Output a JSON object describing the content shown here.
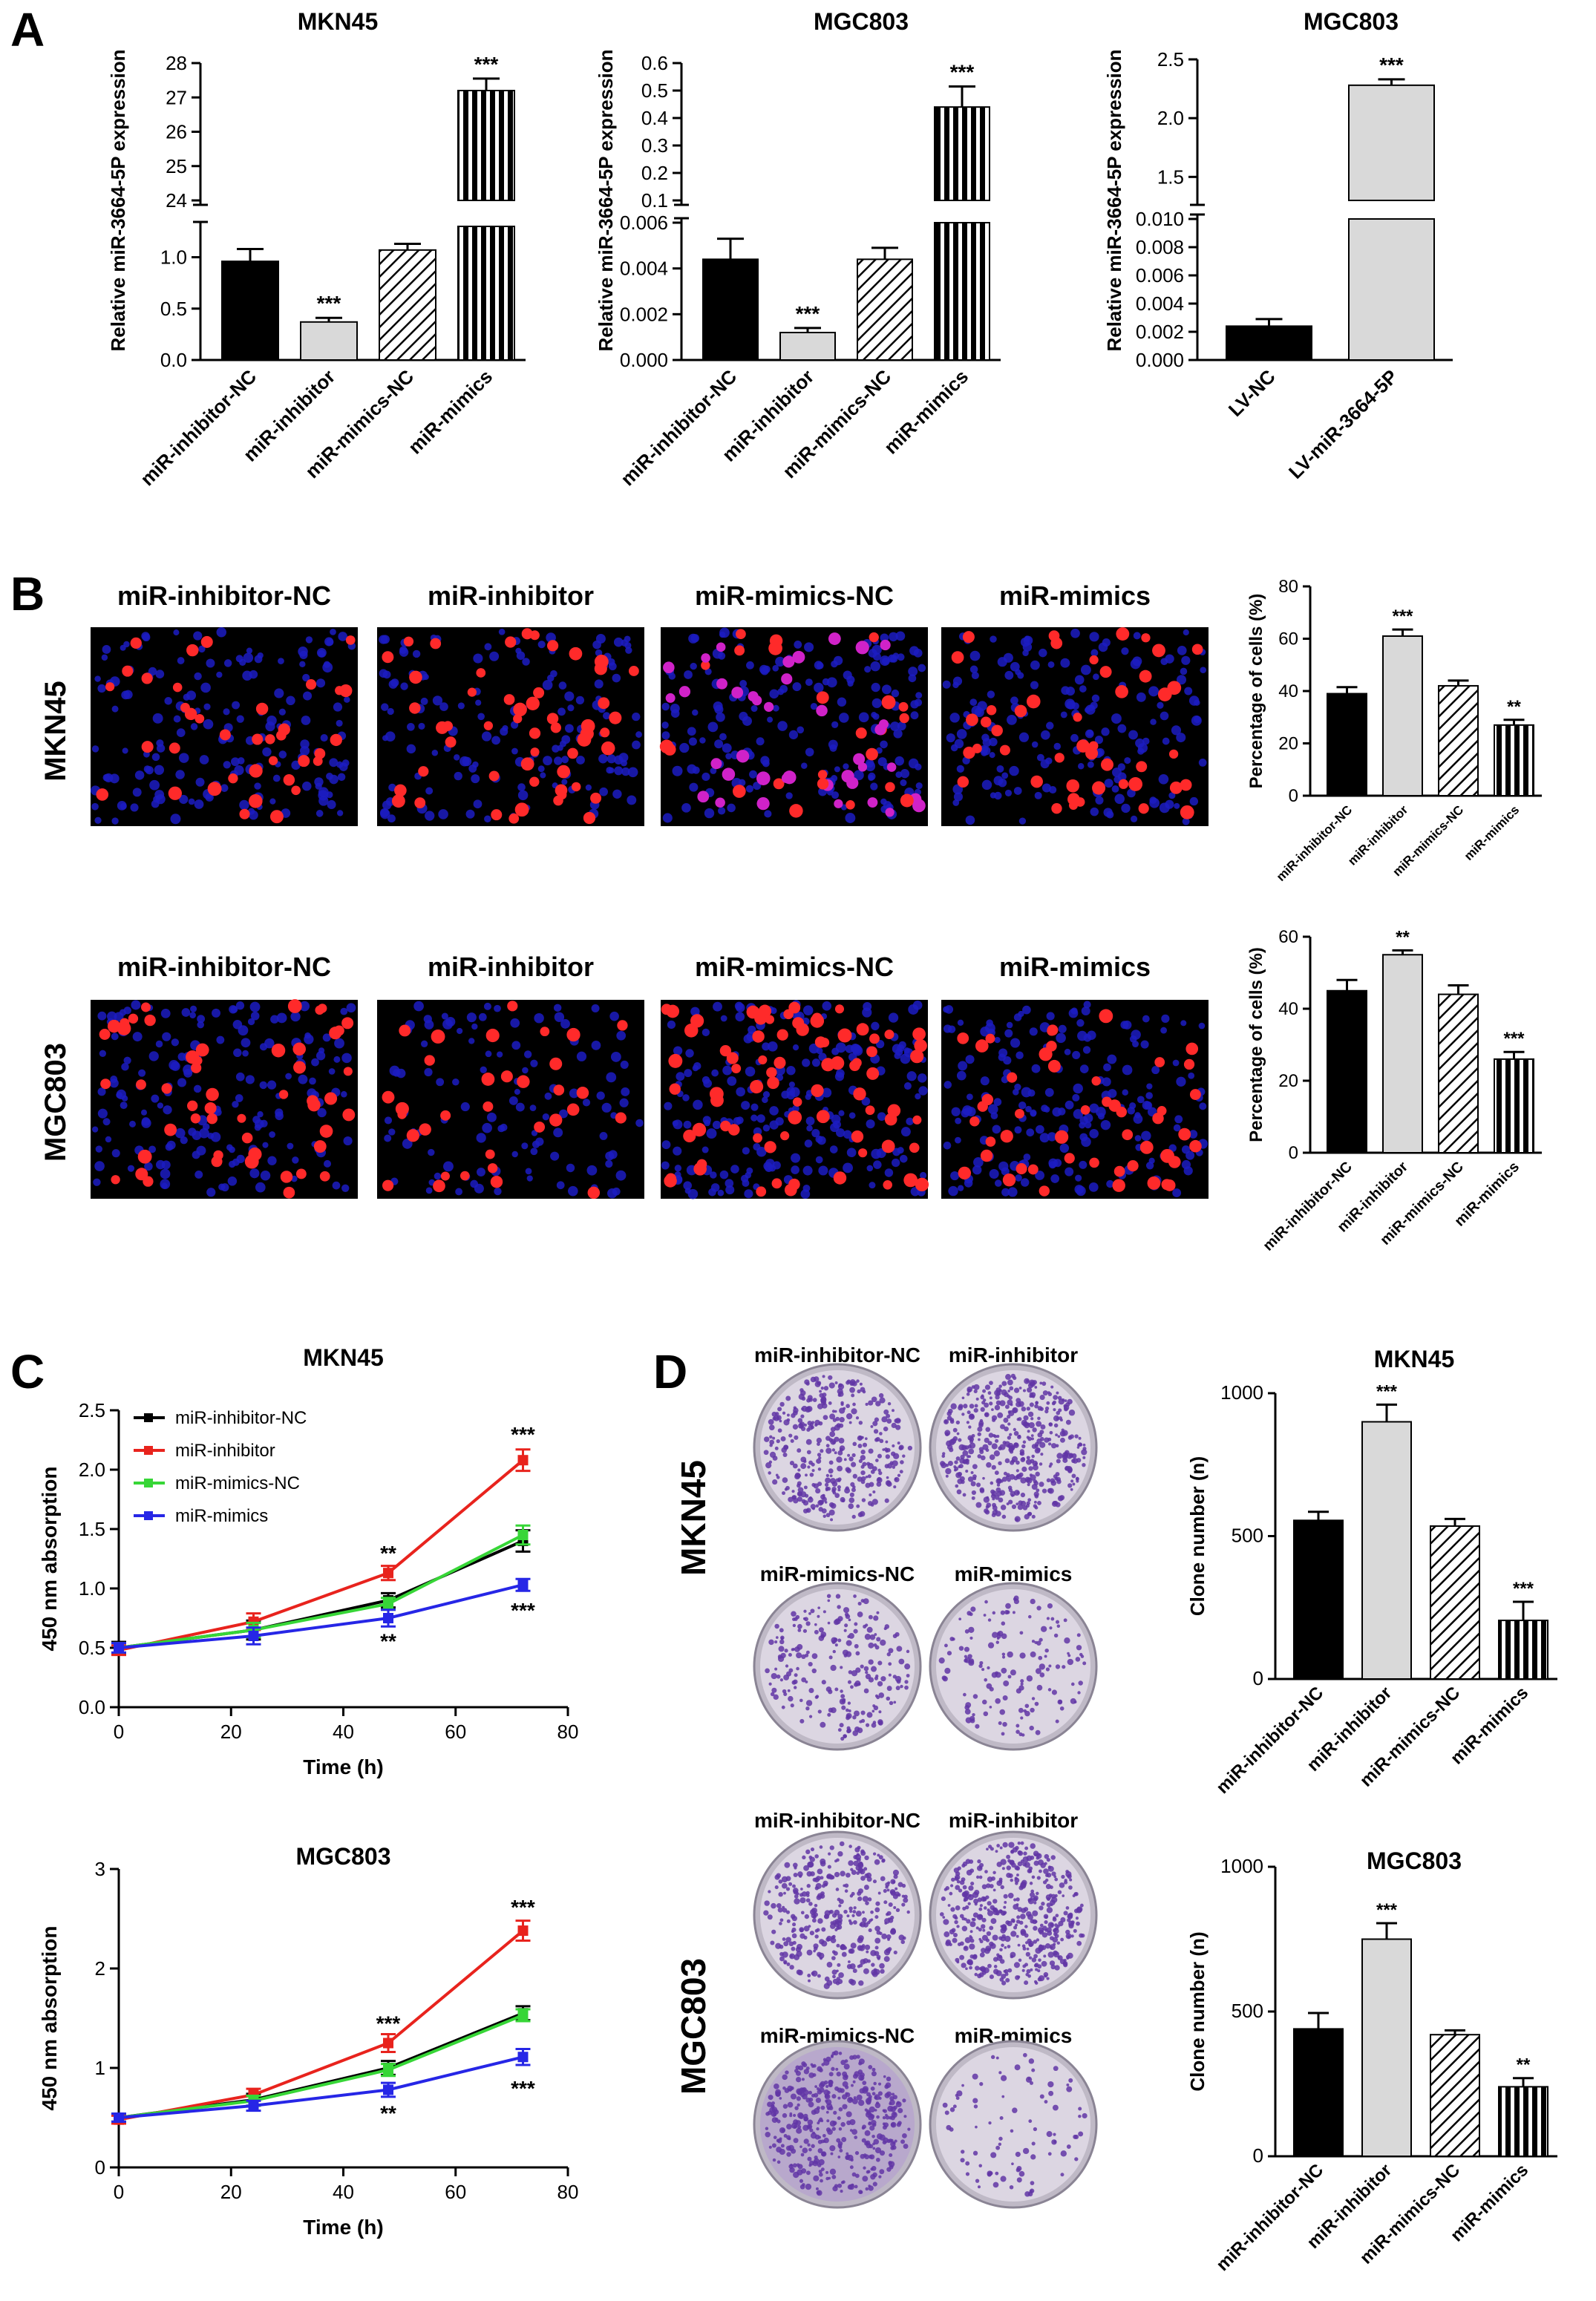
{
  "figure": {
    "panel_letters": [
      "A",
      "B",
      "C",
      "D"
    ],
    "colors": {
      "black": "#000000",
      "light_gray": "#d9d9d9",
      "red": "#e8231d",
      "green": "#37d637",
      "blue": "#2626e6",
      "nuclei_red": "#ff2a2a",
      "nuclei_blue": "#1c1cc2",
      "magenta": "#d022c8",
      "colony_purple": "#6236a6",
      "dish_bg": "#dcd6e2"
    },
    "icons": [
      "fluorescence-micrograph",
      "colony-dish-photo"
    ]
  },
  "panel_a": {
    "ylabel": "Relative miR-3664-5P expression",
    "charts": [
      {
        "title": "MKN45",
        "categories": [
          "miR-inhibitor-NC",
          "miR-inhibitor",
          "miR-mimics-NC",
          "miR-mimics"
        ],
        "values": [
          0.96,
          0.37,
          1.07,
          27.2
        ],
        "errors": [
          0.12,
          0.04,
          0.06,
          0.35
        ],
        "significance": [
          "",
          "***",
          "",
          "***"
        ],
        "upper_ticks": [
          "24",
          "25",
          "26",
          "27",
          "28"
        ],
        "lower_ticks": [
          "0.0",
          "0.5",
          "1.0"
        ]
      },
      {
        "title": "MGC803",
        "categories": [
          "miR-inhibitor-NC",
          "miR-inhibitor",
          "miR-mimics-NC",
          "miR-mimics"
        ],
        "values": [
          0.0044,
          0.0012,
          0.0044,
          0.44
        ],
        "errors": [
          0.0009,
          0.0002,
          0.0005,
          0.075
        ],
        "significance": [
          "",
          "***",
          "",
          "***"
        ],
        "upper_ticks": [
          "0.1",
          "0.2",
          "0.3",
          "0.4",
          "0.5",
          "0.6"
        ],
        "lower_ticks": [
          "0.000",
          "0.002",
          "0.004",
          "0.006"
        ]
      },
      {
        "title": "MGC803",
        "categories": [
          "LV-NC",
          "LV-miR-3664-5P"
        ],
        "values": [
          0.0024,
          2.28
        ],
        "errors": [
          0.0005,
          0.05
        ],
        "significance": [
          "",
          "***"
        ],
        "upper_ticks": [
          "1.5",
          "2.0",
          "2.5"
        ],
        "lower_ticks": [
          "0.000",
          "0.002",
          "0.004",
          "0.006",
          "0.008",
          "0.010"
        ]
      }
    ]
  },
  "panel_b": {
    "rows": [
      {
        "cell_line": "MKN45",
        "image_labels": [
          "miR-inhibitor-NC",
          "miR-inhibitor",
          "miR-mimics-NC",
          "miR-mimics"
        ],
        "chart": {
          "ylabel": "Percentage of cells (%)",
          "categories": [
            "miR-inhibitor-NC",
            "miR-inhibitor",
            "miR-mimics-NC",
            "miR-mimics"
          ],
          "values": [
            39,
            61,
            42,
            27
          ],
          "errors": [
            2.5,
            2.5,
            2,
            2
          ],
          "significance": [
            "",
            "***",
            "",
            "**"
          ],
          "ylim": [
            0,
            80
          ],
          "yticks": [
            "0",
            "20",
            "40",
            "60",
            "80"
          ]
        }
      },
      {
        "cell_line": "MGC803",
        "image_labels": [
          "miR-inhibitor-NC",
          "miR-inhibitor",
          "miR-mimics-NC",
          "miR-mimics"
        ],
        "chart": {
          "ylabel": "Percentage of cells (%)",
          "categories": [
            "miR-inhibitor-NC",
            "miR-inhibitor",
            "miR-mimics-NC",
            "miR-mimics"
          ],
          "values": [
            45,
            55,
            44,
            26
          ],
          "errors": [
            3,
            1.2,
            2.5,
            2
          ],
          "significance": [
            "",
            "**",
            "",
            "***"
          ],
          "ylim": [
            0,
            60
          ],
          "yticks": [
            "0",
            "20",
            "40",
            "60"
          ]
        }
      }
    ]
  },
  "panel_c": {
    "charts": [
      {
        "title": "MKN45",
        "xlabel": "Time (h)",
        "ylabel": "450 nm absorption",
        "xticks": [
          "0",
          "20",
          "40",
          "60",
          "80"
        ],
        "yticks": [
          "0.0",
          "0.5",
          "1.0",
          "1.5",
          "2.0",
          "2.5"
        ],
        "ylim": [
          0,
          2.5
        ],
        "x": [
          0,
          24,
          48,
          72
        ],
        "series": [
          {
            "name": "miR-inhibitor-NC",
            "color": "#000000",
            "values": [
              0.5,
              0.65,
              0.9,
              1.4
            ],
            "errors": [
              0.05,
              0.08,
              0.06,
              0.09
            ]
          },
          {
            "name": "miR-inhibitor",
            "color": "#e8231d",
            "values": [
              0.48,
              0.72,
              1.13,
              2.08
            ],
            "errors": [
              0.04,
              0.07,
              0.06,
              0.09
            ]
          },
          {
            "name": "miR-mimics-NC",
            "color": "#37d637",
            "values": [
              0.5,
              0.65,
              0.87,
              1.45
            ],
            "errors": [
              0.04,
              0.06,
              0.05,
              0.08
            ]
          },
          {
            "name": "miR-mimics",
            "color": "#2626e6",
            "values": [
              0.5,
              0.6,
              0.75,
              1.03
            ],
            "errors": [
              0.04,
              0.07,
              0.07,
              0.05
            ]
          }
        ],
        "annotations": [
          {
            "x": 48,
            "y": 1.3,
            "text": "**"
          },
          {
            "x": 72,
            "y": 2.3,
            "text": "***"
          },
          {
            "x": 48,
            "y": 0.56,
            "text": "**"
          },
          {
            "x": 72,
            "y": 0.82,
            "text": "***"
          }
        ]
      },
      {
        "title": "MGC803",
        "xlabel": "Time (h)",
        "ylabel": "450 nm absorption",
        "xticks": [
          "0",
          "20",
          "40",
          "60",
          "80"
        ],
        "yticks": [
          "0",
          "1",
          "2",
          "3"
        ],
        "ylim": [
          0,
          3
        ],
        "x": [
          0,
          24,
          48,
          72
        ],
        "series": [
          {
            "name": "miR-inhibitor-NC",
            "color": "#000000",
            "values": [
              0.5,
              0.68,
              1.0,
              1.55
            ],
            "errors": [
              0.04,
              0.06,
              0.07,
              0.07
            ]
          },
          {
            "name": "miR-inhibitor",
            "color": "#e8231d",
            "values": [
              0.48,
              0.73,
              1.25,
              2.38
            ],
            "errors": [
              0.04,
              0.06,
              0.09,
              0.1
            ]
          },
          {
            "name": "miR-mimics-NC",
            "color": "#37d637",
            "values": [
              0.5,
              0.67,
              0.98,
              1.53
            ],
            "errors": [
              0.04,
              0.05,
              0.06,
              0.06
            ]
          },
          {
            "name": "miR-mimics",
            "color": "#2626e6",
            "values": [
              0.5,
              0.62,
              0.78,
              1.11
            ],
            "errors": [
              0.04,
              0.05,
              0.07,
              0.08
            ]
          }
        ],
        "annotations": [
          {
            "x": 48,
            "y": 1.45,
            "text": "***"
          },
          {
            "x": 72,
            "y": 2.62,
            "text": "***"
          },
          {
            "x": 48,
            "y": 0.55,
            "text": "**"
          },
          {
            "x": 72,
            "y": 0.8,
            "text": "***"
          }
        ]
      }
    ]
  },
  "panel_d": {
    "rows": [
      {
        "cell_line": "MKN45",
        "dish_labels": [
          "miR-inhibitor-NC",
          "miR-inhibitor",
          "miR-mimics-NC",
          "miR-mimics"
        ],
        "chart": {
          "title": "MKN45",
          "ylabel": "Clone number (n)",
          "categories": [
            "miR-inhibitor-NC",
            "miR-inhibitor",
            "miR-mimics-NC",
            "miR-mimics"
          ],
          "values": [
            555,
            900,
            535,
            205
          ],
          "errors": [
            30,
            60,
            25,
            65
          ],
          "significance": [
            "",
            "***",
            "",
            "***"
          ],
          "ylim": [
            0,
            1000
          ],
          "yticks": [
            "0",
            "500",
            "1000"
          ]
        }
      },
      {
        "cell_line": "MGC803",
        "dish_labels": [
          "miR-inhibitor-NC",
          "miR-inhibitor",
          "miR-mimics-NC",
          "miR-mimics"
        ],
        "chart": {
          "title": "MGC803",
          "ylabel": "Clone number (n)",
          "categories": [
            "miR-inhibitor-NC",
            "miR-inhibitor",
            "miR-mimics-NC",
            "miR-mimics"
          ],
          "values": [
            440,
            750,
            420,
            240
          ],
          "errors": [
            55,
            55,
            15,
            30
          ],
          "significance": [
            "",
            "***",
            "",
            "**"
          ],
          "ylim": [
            0,
            1000
          ],
          "yticks": [
            "0",
            "500",
            "1000"
          ]
        }
      }
    ]
  },
  "chart_data": [
    {
      "type": "bar",
      "title": "MKN45",
      "ylabel": "Relative miR-3664-5P expression",
      "categories": [
        "miR-inhibitor-NC",
        "miR-inhibitor",
        "miR-mimics-NC",
        "miR-mimics"
      ],
      "values": [
        0.96,
        0.37,
        1.07,
        27.2
      ]
    },
    {
      "type": "bar",
      "title": "MGC803",
      "ylabel": "Relative miR-3664-5P expression",
      "categories": [
        "miR-inhibitor-NC",
        "miR-inhibitor",
        "miR-mimics-NC",
        "miR-mimics"
      ],
      "values": [
        0.0044,
        0.0012,
        0.0044,
        0.44
      ]
    },
    {
      "type": "bar",
      "title": "MGC803",
      "ylabel": "Relative miR-3664-5P expression",
      "categories": [
        "LV-NC",
        "LV-miR-3664-5P"
      ],
      "values": [
        0.0024,
        2.28
      ]
    },
    {
      "type": "bar",
      "ylabel": "Percentage of cells (%)",
      "categories": [
        "miR-inhibitor-NC",
        "miR-inhibitor",
        "miR-mimics-NC",
        "miR-mimics"
      ],
      "values": [
        39,
        61,
        42,
        27
      ],
      "ylim": [
        0,
        80
      ]
    },
    {
      "type": "bar",
      "ylabel": "Percentage of cells (%)",
      "categories": [
        "miR-inhibitor-NC",
        "miR-inhibitor",
        "miR-mimics-NC",
        "miR-mimics"
      ],
      "values": [
        45,
        55,
        44,
        26
      ],
      "ylim": [
        0,
        60
      ]
    },
    {
      "type": "line",
      "title": "MKN45",
      "xlabel": "Time (h)",
      "ylabel": "450 nm absorption",
      "x": [
        0,
        24,
        48,
        72
      ],
      "series": [
        {
          "name": "miR-inhibitor-NC",
          "values": [
            0.5,
            0.65,
            0.9,
            1.4
          ]
        },
        {
          "name": "miR-inhibitor",
          "values": [
            0.48,
            0.72,
            1.13,
            2.08
          ]
        },
        {
          "name": "miR-mimics-NC",
          "values": [
            0.5,
            0.65,
            0.87,
            1.45
          ]
        },
        {
          "name": "miR-mimics",
          "values": [
            0.5,
            0.6,
            0.75,
            1.03
          ]
        }
      ],
      "ylim": [
        0,
        2.5
      ]
    },
    {
      "type": "line",
      "title": "MGC803",
      "xlabel": "Time (h)",
      "ylabel": "450 nm absorption",
      "x": [
        0,
        24,
        48,
        72
      ],
      "series": [
        {
          "name": "miR-inhibitor-NC",
          "values": [
            0.5,
            0.68,
            1.0,
            1.55
          ]
        },
        {
          "name": "miR-inhibitor",
          "values": [
            0.48,
            0.73,
            1.25,
            2.38
          ]
        },
        {
          "name": "miR-mimics-NC",
          "values": [
            0.5,
            0.67,
            0.98,
            1.53
          ]
        },
        {
          "name": "miR-mimics",
          "values": [
            0.5,
            0.62,
            0.78,
            1.11
          ]
        }
      ],
      "ylim": [
        0,
        3
      ]
    },
    {
      "type": "bar",
      "title": "MKN45",
      "ylabel": "Clone number (n)",
      "categories": [
        "miR-inhibitor-NC",
        "miR-inhibitor",
        "miR-mimics-NC",
        "miR-mimics"
      ],
      "values": [
        555,
        900,
        535,
        205
      ],
      "ylim": [
        0,
        1000
      ]
    },
    {
      "type": "bar",
      "title": "MGC803",
      "ylabel": "Clone number (n)",
      "categories": [
        "miR-inhibitor-NC",
        "miR-inhibitor",
        "miR-mimics-NC",
        "miR-mimics"
      ],
      "values": [
        440,
        750,
        420,
        240
      ],
      "ylim": [
        0,
        1000
      ]
    }
  ]
}
